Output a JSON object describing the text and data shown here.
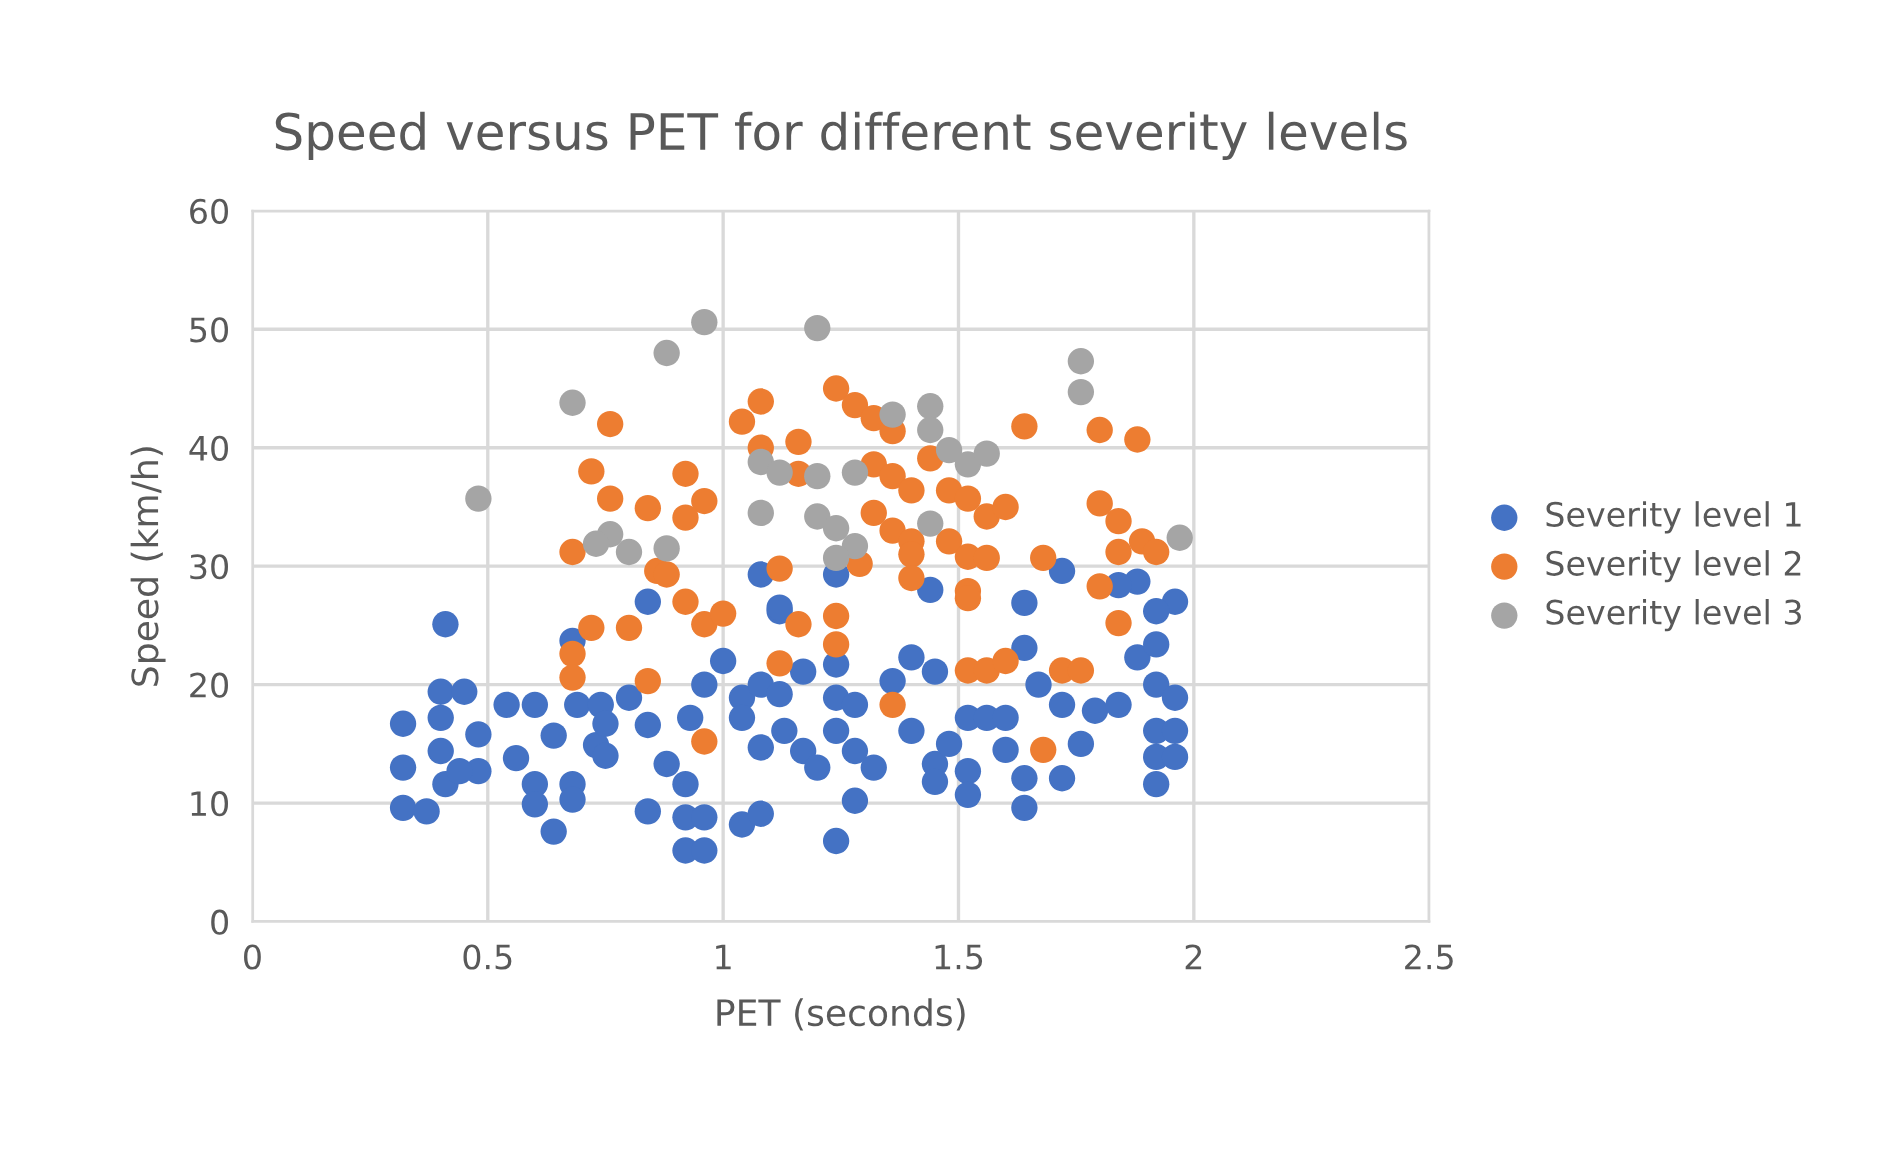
{
  "chart_data": {
    "type": "scatter",
    "title": "Speed versus PET for different severity levels",
    "xlabel": "PET (seconds)",
    "ylabel": "Speed (km/h)",
    "xlim": [
      0,
      2.5
    ],
    "xticks": [
      0,
      0.5,
      1,
      1.5,
      2,
      2.5
    ],
    "ylim": [
      0,
      60
    ],
    "yticks": [
      0,
      10,
      20,
      30,
      40,
      50,
      60
    ],
    "grid": true,
    "legend": "right",
    "marker": "circle",
    "series": [
      {
        "name": "Severity level 1",
        "color": "#4472c4",
        "x": [
          0.41,
          0.32,
          0.32,
          0.32,
          0.37,
          0.4,
          0.4,
          0.4,
          0.48,
          0.41,
          0.48,
          0.44,
          0.45,
          0.54,
          0.6,
          0.56,
          0.6,
          0.6,
          0.64,
          0.68,
          0.68,
          0.68,
          0.64,
          0.69,
          0.73,
          0.74,
          0.84,
          1.0,
          1.12,
          0.8,
          0.84,
          0.93,
          0.96,
          1.04,
          1.08,
          1.12,
          1.17,
          1.24,
          1.24,
          1.28,
          1.04,
          1.08,
          1.13,
          1.17,
          1.2,
          1.24,
          1.28,
          1.32,
          1.4,
          1.45,
          1.36,
          1.4,
          1.45,
          1.45,
          1.48,
          1.52,
          1.52,
          1.52,
          1.56,
          1.6,
          1.6,
          1.64,
          1.64,
          1.64,
          1.67,
          1.72,
          1.72,
          1.76,
          1.79,
          1.84,
          1.88,
          1.92,
          1.92,
          1.92,
          1.92,
          1.92,
          1.96,
          1.96,
          1.96,
          1.96,
          0.84,
          0.92,
          0.96,
          0.92,
          0.96,
          1.04,
          1.08,
          1.28,
          1.24,
          0.75,
          0.75,
          0.88,
          0.92,
          1.08,
          1.12,
          1.24,
          1.44,
          1.64,
          1.72,
          1.88,
          1.84,
          1.92
        ],
        "values": [
          25.1,
          16.7,
          13.0,
          9.6,
          9.3,
          19.4,
          17.2,
          14.4,
          15.8,
          11.6,
          12.7,
          12.7,
          19.4,
          18.3,
          18.3,
          13.8,
          11.6,
          9.9,
          7.6,
          11.6,
          10.3,
          23.7,
          15.7,
          18.3,
          14.9,
          18.3,
          27.0,
          22.0,
          26.2,
          18.9,
          16.6,
          17.2,
          20.0,
          18.9,
          20.0,
          19.2,
          21.1,
          21.7,
          18.9,
          18.3,
          17.2,
          14.7,
          16.1,
          14.4,
          13.0,
          16.1,
          14.4,
          13.0,
          22.3,
          21.1,
          20.3,
          16.1,
          13.3,
          11.8,
          15.0,
          17.2,
          12.7,
          10.7,
          17.2,
          17.2,
          14.5,
          12.1,
          9.6,
          23.1,
          20.0,
          18.3,
          12.1,
          15.0,
          17.8,
          18.3,
          22.3,
          23.4,
          20.0,
          16.1,
          13.9,
          11.6,
          18.9,
          16.1,
          13.9,
          27.0,
          9.3,
          8.8,
          8.8,
          6.0,
          6.0,
          8.2,
          9.1,
          10.2,
          6.8,
          16.7,
          14.0,
          13.3,
          11.6,
          29.3,
          26.5,
          29.3,
          28.0,
          26.9,
          29.6,
          28.7,
          28.4,
          26.2
        ]
      },
      {
        "name": "Severity level 2",
        "color": "#ed7d31",
        "x": [
          0.76,
          1.04,
          1.08,
          1.08,
          1.16,
          1.24,
          1.28,
          1.32,
          1.36,
          1.16,
          1.32,
          1.36,
          1.4,
          1.44,
          1.48,
          1.52,
          1.56,
          1.6,
          1.64,
          1.8,
          1.88,
          1.8,
          1.84,
          1.84,
          1.89,
          1.92,
          1.32,
          1.36,
          1.4,
          1.4,
          1.48,
          1.52,
          1.56,
          1.68,
          1.4,
          1.52,
          1.8,
          1.84,
          1.12,
          1.29,
          1.16,
          1.24,
          0.92,
          0.96,
          0.92,
          0.84,
          0.76,
          0.86,
          0.88,
          0.92,
          0.8,
          0.96,
          1.0,
          0.72,
          0.68,
          0.72,
          0.68,
          0.68,
          1.24,
          1.12,
          0.84,
          0.96,
          1.36,
          1.52,
          1.56,
          1.6,
          1.72,
          1.76,
          1.68,
          1.52
        ],
        "values": [
          42.0,
          42.2,
          43.9,
          40.0,
          40.5,
          45.0,
          43.6,
          42.5,
          41.4,
          37.8,
          38.6,
          37.6,
          36.4,
          39.1,
          36.4,
          35.7,
          34.2,
          35.0,
          41.8,
          41.5,
          40.7,
          35.3,
          33.8,
          31.2,
          32.1,
          31.2,
          34.5,
          33.0,
          32.1,
          31.0,
          32.1,
          30.8,
          30.7,
          30.7,
          29.0,
          27.9,
          28.3,
          25.2,
          29.8,
          30.2,
          25.1,
          25.8,
          37.8,
          35.5,
          34.1,
          34.9,
          35.7,
          29.6,
          29.3,
          27.0,
          24.8,
          25.1,
          26.0,
          38.0,
          31.2,
          24.8,
          22.6,
          20.6,
          23.4,
          21.8,
          20.3,
          15.2,
          18.3,
          21.2,
          21.2,
          22.0,
          21.2,
          21.2,
          14.5,
          27.3
        ]
      },
      {
        "name": "Severity level 3",
        "color": "#a5a5a5",
        "x": [
          0.96,
          0.88,
          1.2,
          1.76,
          1.76,
          1.36,
          1.44,
          1.44,
          1.48,
          1.52,
          1.56,
          1.08,
          1.12,
          1.2,
          1.28,
          1.08,
          1.2,
          1.24,
          1.44,
          1.28,
          1.24,
          0.76,
          0.8,
          0.88,
          1.97,
          0.68,
          0.48,
          0.73
        ],
        "values": [
          50.6,
          48.0,
          50.1,
          47.3,
          44.7,
          42.8,
          43.5,
          41.5,
          39.8,
          38.6,
          39.5,
          38.8,
          37.9,
          37.6,
          37.9,
          34.5,
          34.2,
          33.2,
          33.6,
          31.7,
          30.7,
          32.7,
          31.2,
          31.5,
          32.4,
          43.8,
          35.7,
          31.9
        ]
      }
    ]
  }
}
